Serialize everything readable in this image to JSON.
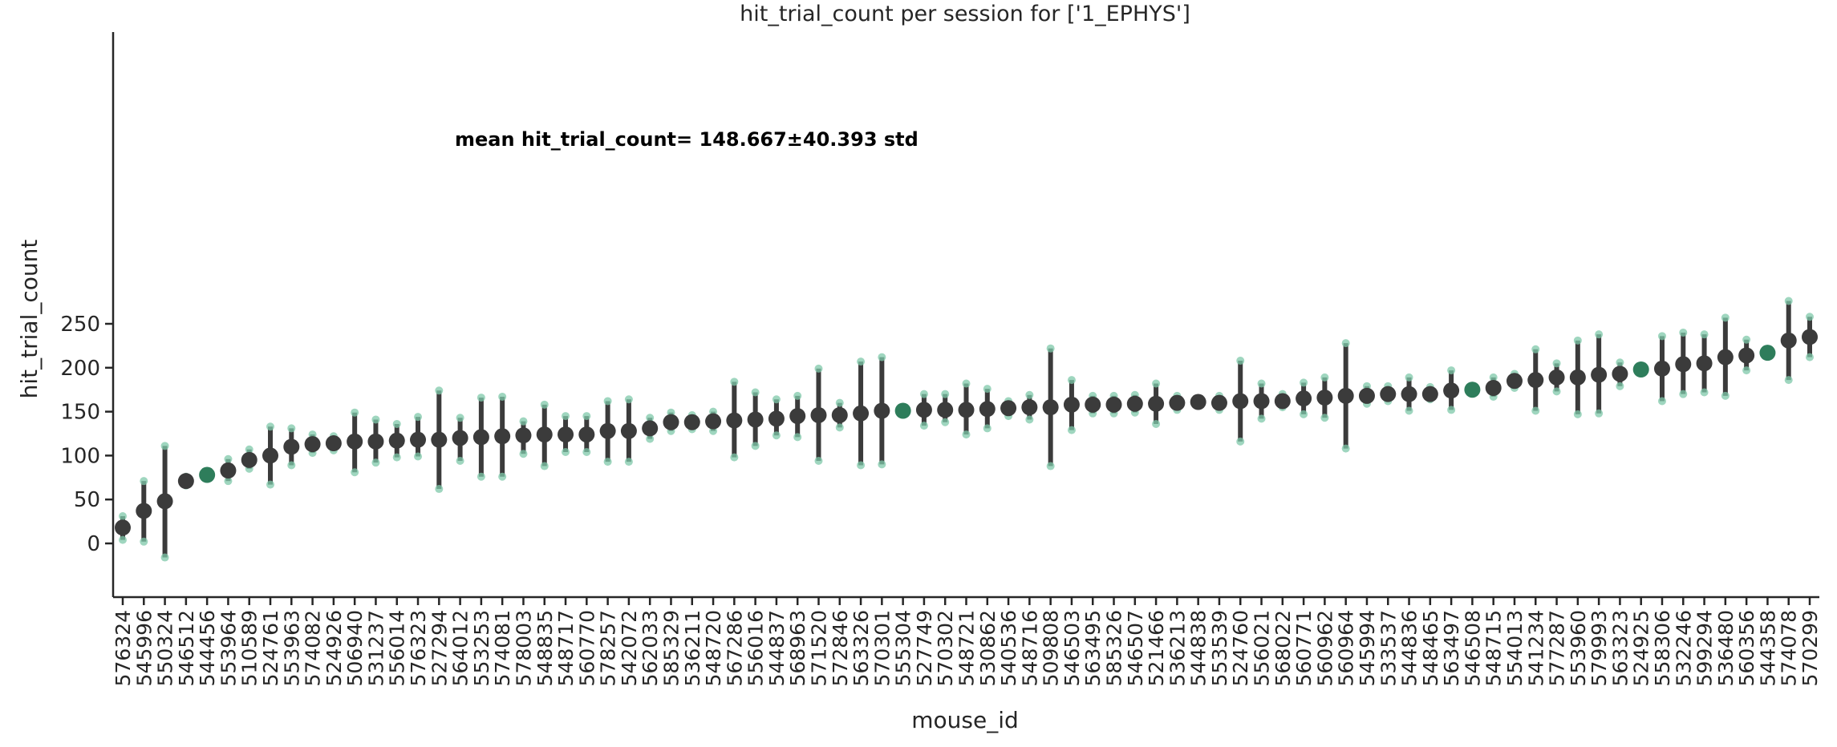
{
  "chart_data": {
    "type": "scatter",
    "title": "hit_trial_count per session for ['1_EPHYS']",
    "xlabel": "mouse_id",
    "ylabel": "hit_trial_count",
    "annotation": "mean hit_trial_count= 148.667±40.393 std",
    "ylim": [
      -30,
      290
    ],
    "yticks": [
      0,
      50,
      100,
      150,
      200,
      250
    ],
    "grid": false,
    "colors": {
      "mean": "#3b3b3b",
      "session": "#7fc8a9",
      "single_session": "#2e7d5b",
      "axis": "#262626"
    },
    "categories": [
      "576324",
      "545996",
      "550324",
      "546512",
      "544456",
      "553964",
      "510589",
      "524761",
      "553963",
      "574082",
      "524926",
      "506940",
      "531237",
      "556014",
      "576323",
      "527294",
      "564012",
      "553253",
      "574081",
      "578003",
      "548835",
      "548717",
      "560770",
      "578257",
      "542072",
      "562033",
      "585329",
      "536211",
      "548720",
      "567286",
      "556016",
      "544837",
      "568963",
      "571520",
      "572846",
      "563326",
      "570301",
      "555304",
      "527749",
      "570302",
      "548721",
      "530862",
      "540536",
      "548716",
      "509808",
      "546503",
      "563495",
      "585326",
      "546507",
      "521466",
      "536213",
      "544838",
      "553539",
      "524760",
      "556021",
      "568022",
      "560771",
      "560962",
      "560964",
      "545994",
      "533537",
      "544836",
      "548465",
      "563497",
      "546508",
      "548715",
      "554013",
      "541234",
      "577287",
      "553960",
      "579993",
      "563323",
      "524925",
      "558306",
      "532246",
      "599294",
      "536480",
      "560356",
      "544358",
      "574078",
      "570299"
    ],
    "series": [
      {
        "values": [
          18,
          37,
          48,
          71,
          78,
          83,
          95,
          100,
          110,
          113,
          114,
          116,
          116,
          117,
          118,
          118,
          120,
          121,
          122,
          123,
          124,
          124,
          124,
          128,
          128,
          131,
          138,
          138,
          139,
          140,
          141,
          142,
          145,
          146,
          146,
          148,
          151,
          151,
          152,
          152,
          152,
          153,
          154,
          155,
          155,
          158,
          158,
          158,
          159,
          159,
          160,
          161,
          160,
          162,
          162,
          162,
          165,
          166,
          168,
          168,
          170,
          170,
          170,
          174,
          175,
          177,
          185,
          186,
          189,
          189,
          192,
          193,
          198,
          199,
          204,
          205,
          212,
          214,
          217,
          231,
          235
        ],
        "lower": [
          4,
          2,
          -16,
          66,
          77,
          71,
          85,
          67,
          89,
          103,
          106,
          81,
          92,
          98,
          99,
          62,
          94,
          76,
          76,
          102,
          88,
          104,
          104,
          93,
          93,
          119,
          128,
          130,
          128,
          98,
          111,
          123,
          121,
          94,
          132,
          89,
          90,
          150,
          134,
          138,
          124,
          131,
          145,
          141,
          88,
          129,
          148,
          148,
          149,
          136,
          152,
          157,
          152,
          116,
          142,
          155,
          147,
          143,
          108,
          159,
          162,
          151,
          164,
          152,
          174,
          167,
          177,
          151,
          173,
          147,
          148,
          179,
          197,
          162,
          170,
          172,
          168,
          197,
          216,
          186,
          212
        ],
        "upper": [
          31,
          71,
          111,
          76,
          79,
          96,
          107,
          133,
          131,
          124,
          122,
          149,
          141,
          136,
          144,
          174,
          143,
          166,
          167,
          139,
          158,
          145,
          145,
          162,
          164,
          143,
          149,
          146,
          150,
          184,
          172,
          164,
          168,
          199,
          160,
          207,
          212,
          152,
          170,
          170,
          182,
          176,
          162,
          169,
          222,
          186,
          168,
          168,
          169,
          182,
          168,
          165,
          168,
          208,
          182,
          170,
          183,
          189,
          228,
          179,
          179,
          189,
          178,
          197,
          176,
          189,
          193,
          221,
          205,
          231,
          238,
          206,
          199,
          236,
          240,
          238,
          257,
          232,
          218,
          276,
          258
        ]
      }
    ]
  }
}
